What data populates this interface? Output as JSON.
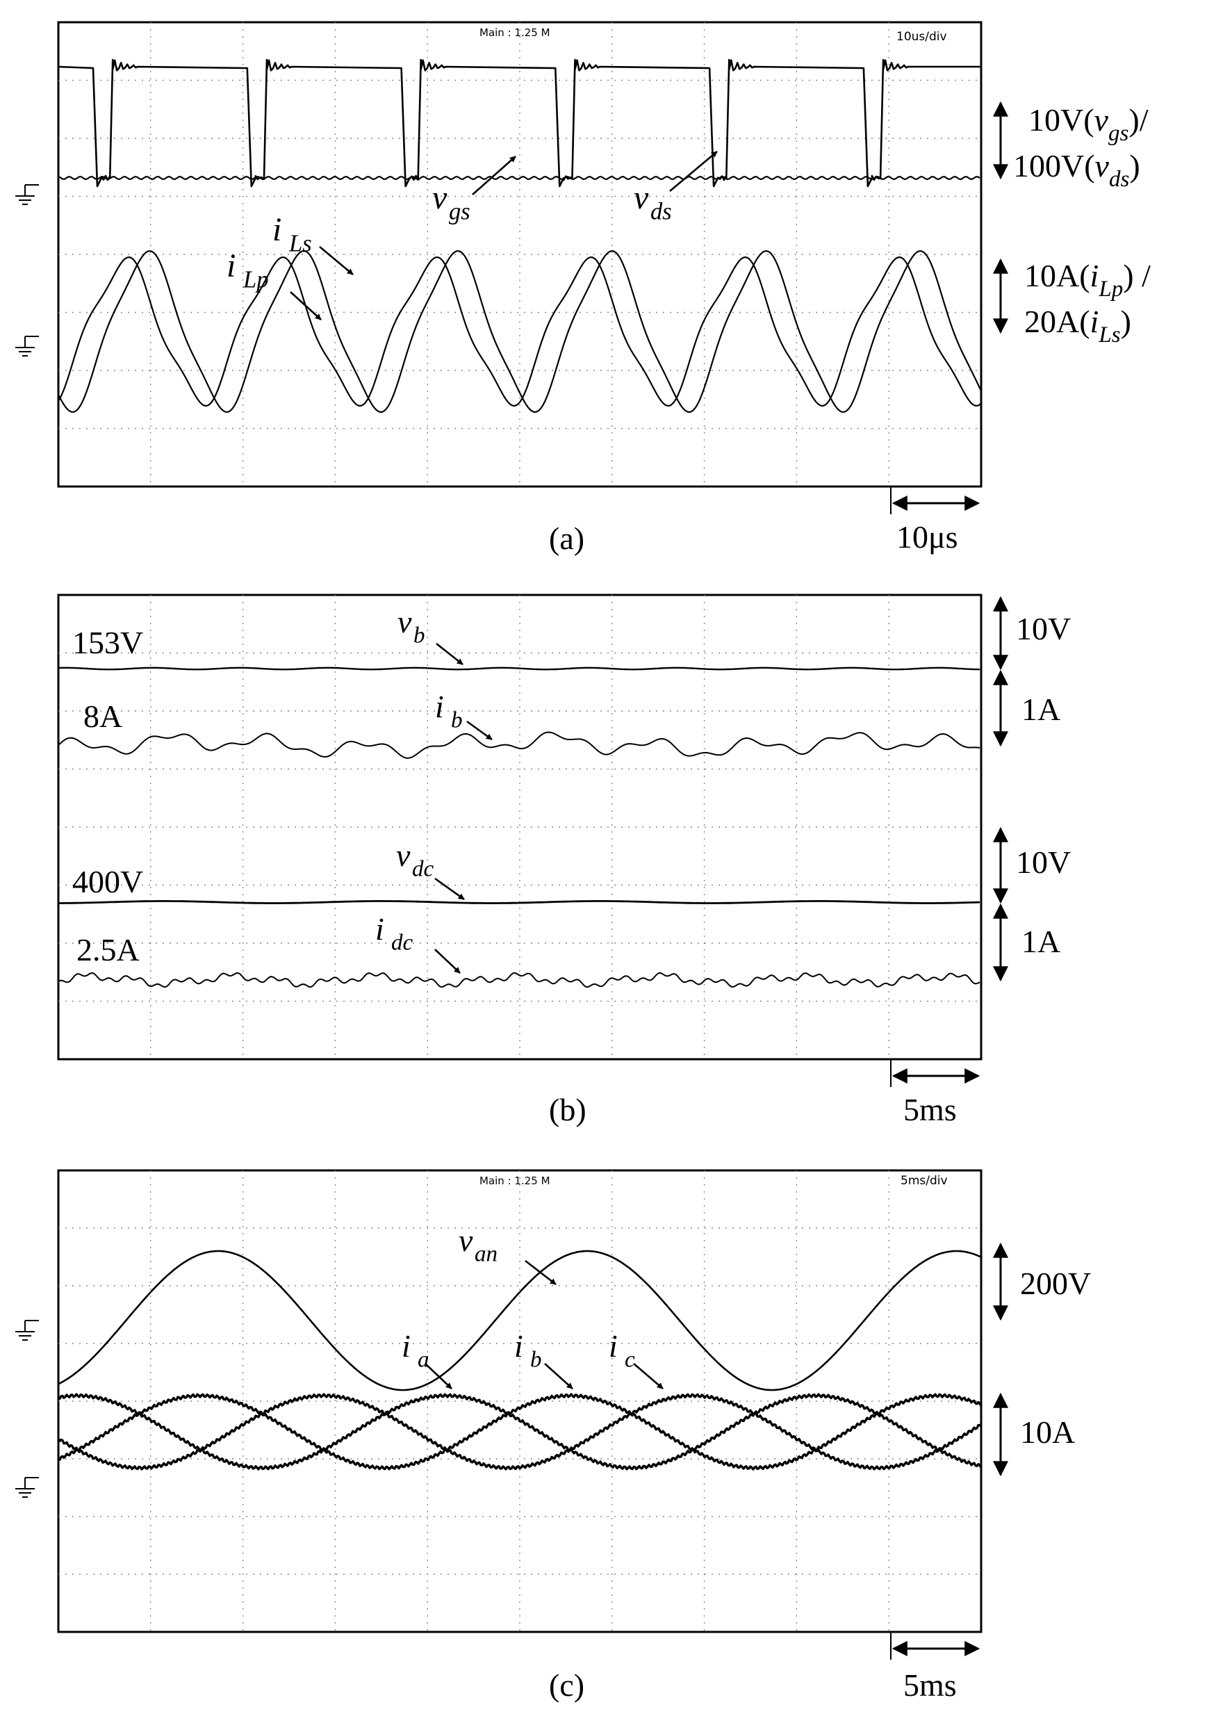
{
  "chart_data": [
    {
      "type": "line",
      "panel_label": "(a)",
      "header_main": "Main : 1.25 M",
      "header_timebase": "10us/div",
      "time_scale_label": "10μs",
      "scale_labels": [
        {
          "parts": [
            [
              "10V(",
              "n"
            ],
            [
              "v",
              "i"
            ],
            [
              "gs",
              "s"
            ],
            [
              ")/",
              "n"
            ]
          ]
        },
        {
          "parts": [
            [
              "100V(",
              "n"
            ],
            [
              "v",
              "i"
            ],
            [
              "ds",
              "s"
            ],
            [
              ")",
              "n"
            ]
          ]
        },
        {
          "parts": [
            [
              "10A(",
              "n"
            ],
            [
              "i",
              "i"
            ],
            [
              "Lp",
              "s"
            ],
            [
              ") /",
              "n"
            ]
          ]
        },
        {
          "parts": [
            [
              "20A(",
              "n"
            ],
            [
              "i",
              "i"
            ],
            [
              "Ls",
              "s"
            ],
            [
              ")",
              "n"
            ]
          ]
        }
      ],
      "series": [
        {
          "name": "v_gs",
          "label_main": "v",
          "label_sub": "gs",
          "kind": "pwm_gate",
          "period_us": 16.7,
          "duty": 0.9
        },
        {
          "name": "v_ds",
          "label_main": "v",
          "label_sub": "ds",
          "kind": "pwm_drain",
          "period_us": 16.7
        },
        {
          "name": "i_Lp",
          "label_main": "i",
          "label_sub": "Lp",
          "kind": "resonant_current",
          "period_us": 16.7
        },
        {
          "name": "i_Ls",
          "label_main": "i",
          "label_sub": "Ls",
          "kind": "resonant_current",
          "period_us": 16.7
        }
      ]
    },
    {
      "type": "line",
      "panel_label": "(b)",
      "time_scale_label": "5ms",
      "series": [
        {
          "name": "v_b",
          "label_main": "v",
          "label_sub": "b",
          "level_label": "153V",
          "scale_label": "10V"
        },
        {
          "name": "i_b",
          "label_main": "i",
          "label_sub": "b",
          "level_label": "8A",
          "scale_label": "1A"
        },
        {
          "name": "v_dc",
          "label_main": "v",
          "label_sub": "dc",
          "level_label": "400V",
          "scale_label": "10V"
        },
        {
          "name": "i_dc",
          "label_main": "i",
          "label_sub": "dc",
          "level_label": "2.5A",
          "scale_label": "1A"
        }
      ]
    },
    {
      "type": "line",
      "panel_label": "(c)",
      "header_main": "Main : 1.25 M",
      "header_timebase": "5ms/div",
      "time_scale_label": "5ms",
      "scale_labels": [
        "200V",
        "10A"
      ],
      "series": [
        {
          "name": "v_an",
          "label_main": "v",
          "label_sub": "an",
          "kind": "sine",
          "frequency_hz": 50
        },
        {
          "name": "i_a",
          "label_main": "i",
          "label_sub": "a",
          "kind": "sine",
          "frequency_hz": 50,
          "phase_deg": 0
        },
        {
          "name": "i_b",
          "label_main": "i",
          "label_sub": "b",
          "kind": "sine",
          "frequency_hz": 50,
          "phase_deg": -120
        },
        {
          "name": "i_c",
          "label_main": "i",
          "label_sub": "c",
          "kind": "sine",
          "frequency_hz": 50,
          "phase_deg": 120
        }
      ]
    }
  ]
}
